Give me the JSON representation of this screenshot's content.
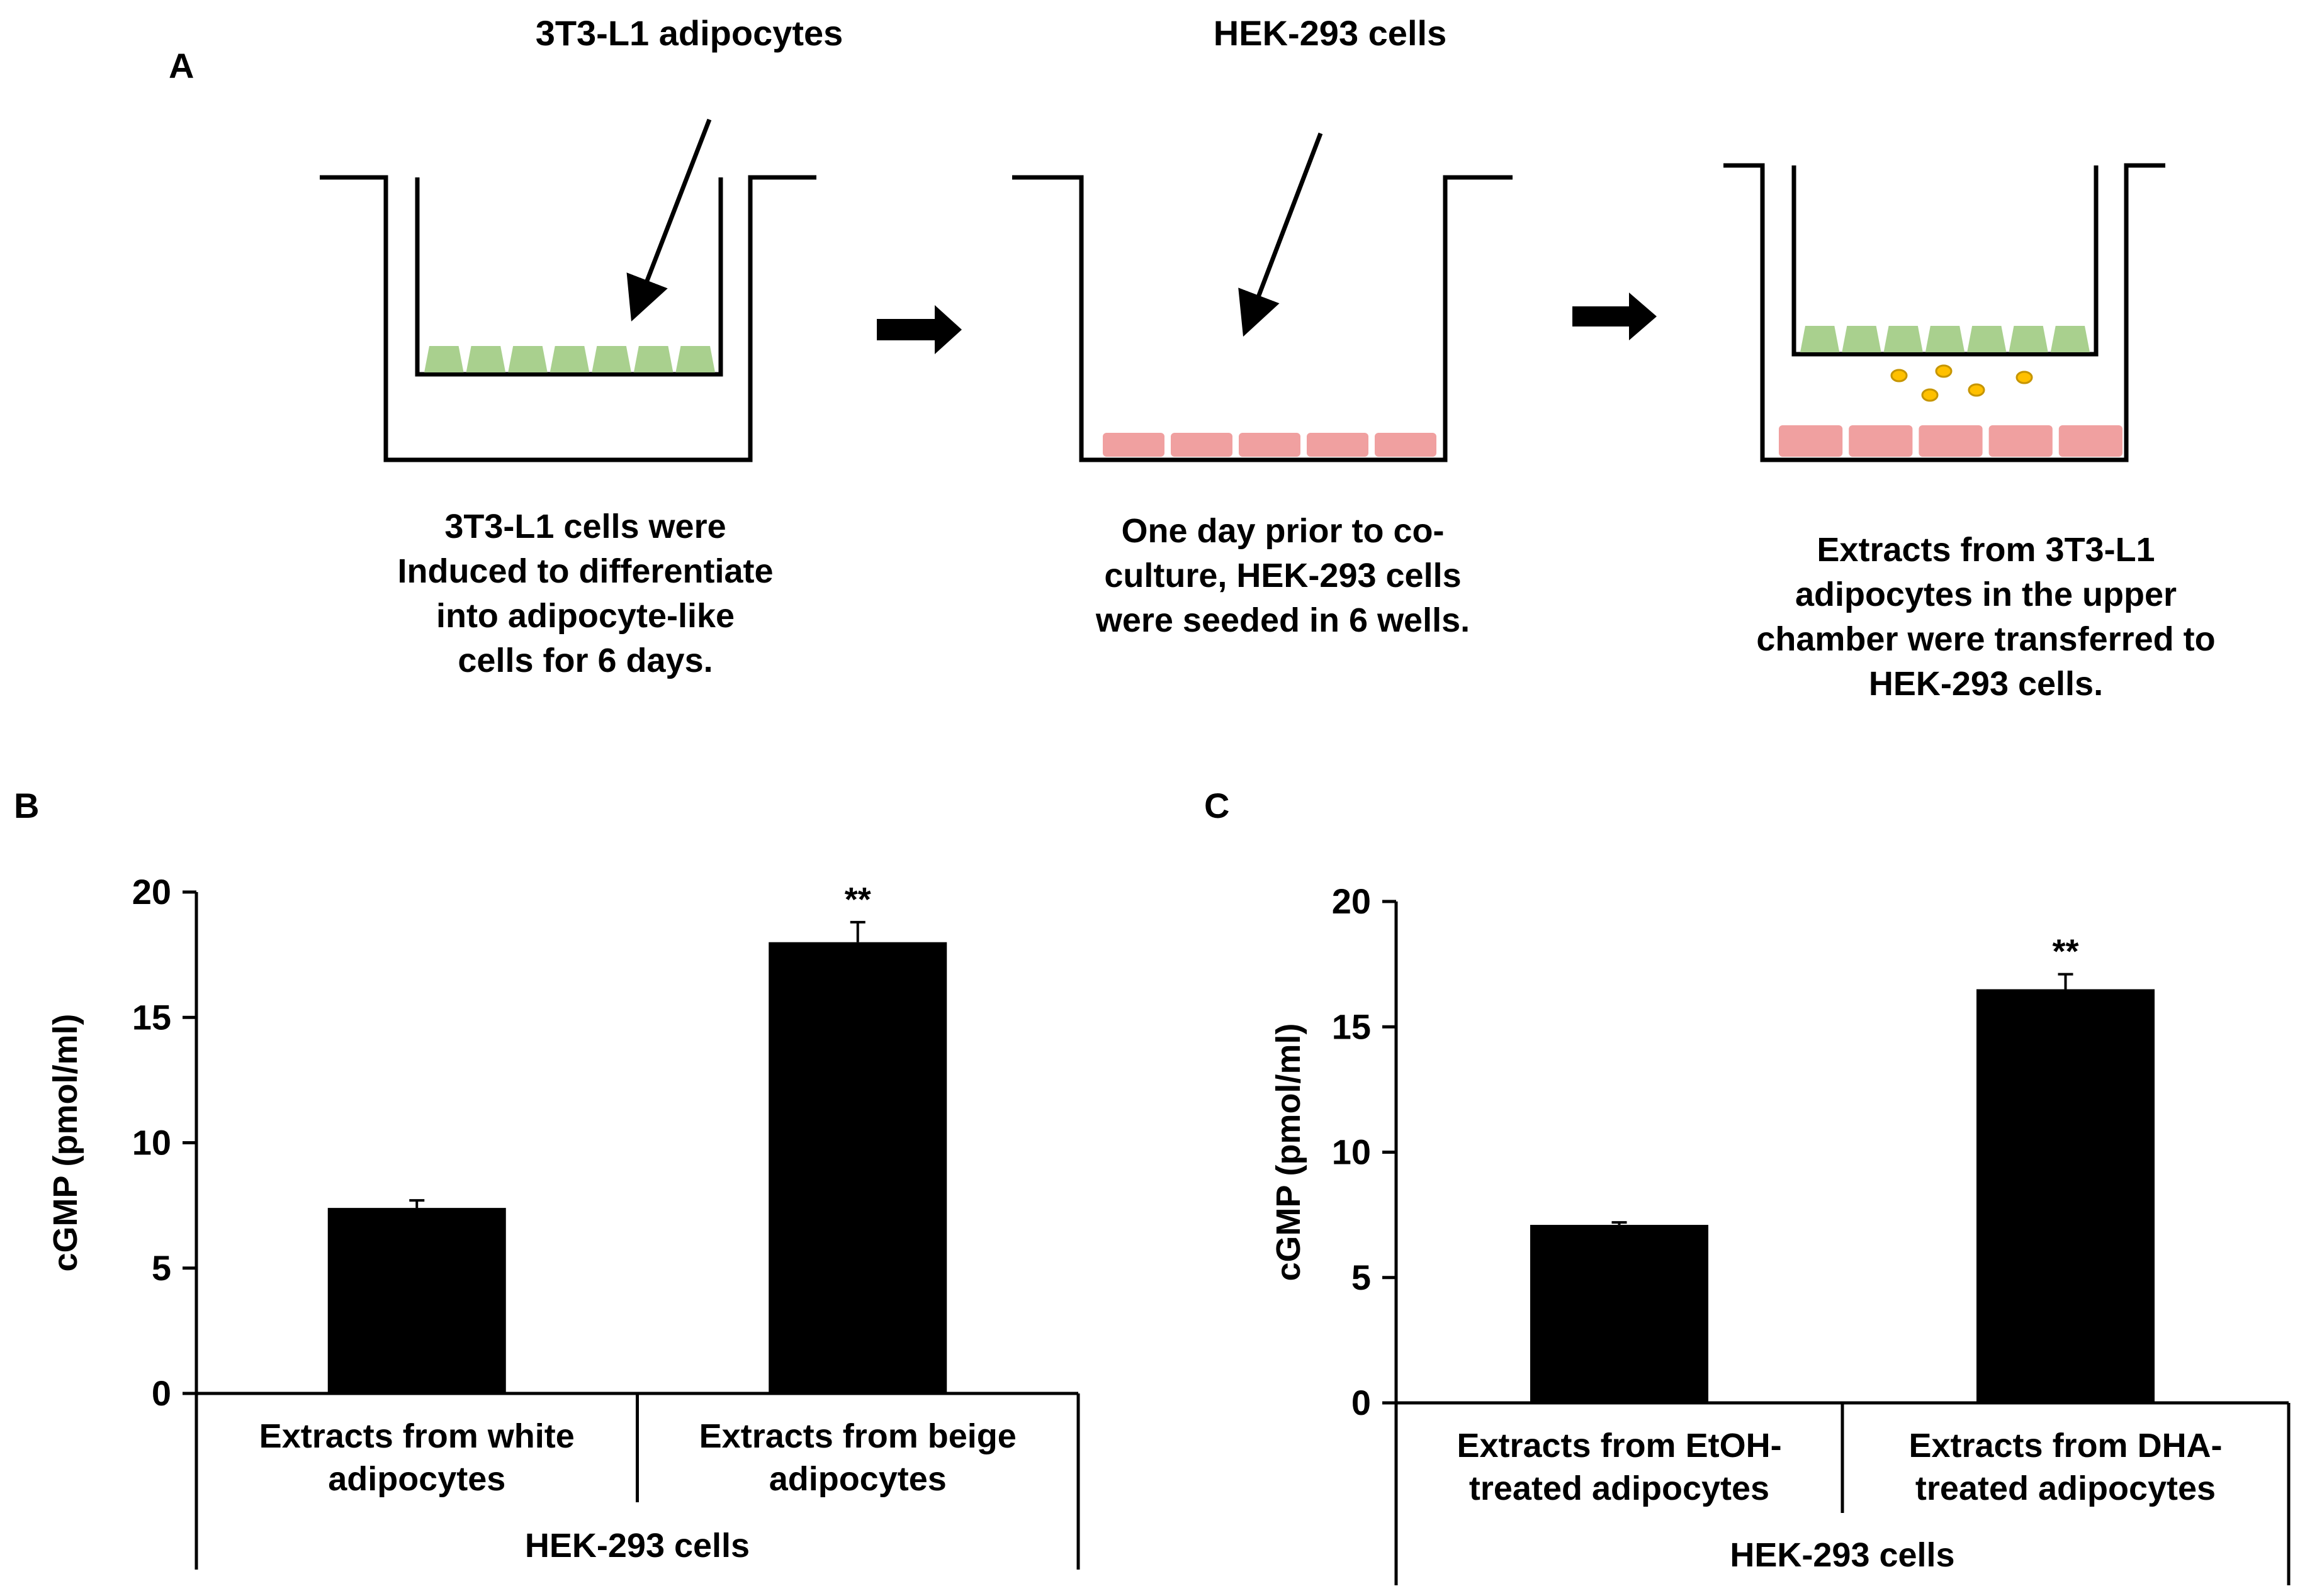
{
  "panels": {
    "a": "A",
    "b": "B",
    "c": "C"
  },
  "schematic": {
    "label_adipocytes": "3T3-L1 adipocytes",
    "label_hek": "HEK-293 cells",
    "captions": [
      [
        "3T3-L1 cells were",
        "Induced to differentiate",
        "into adipocyte-like",
        "cells for 6 days."
      ],
      [
        "One day prior to co-",
        "culture, HEK-293 cells",
        "were seeded in 6 wells."
      ],
      [
        "Extracts from 3T3-L1",
        "adipocytes in the upper",
        "chamber  were transferred to",
        "HEK-293 cells."
      ]
    ],
    "colors": {
      "adipocyte": "#a9d08e",
      "hek": "#f0a0a0",
      "droplet": "#ffc000"
    }
  },
  "chart_data": [
    {
      "type": "bar",
      "panel": "B",
      "categories": [
        [
          "Extracts from white",
          "adipocytes"
        ],
        [
          "Extracts from beige",
          "adipocytes"
        ]
      ],
      "values": [
        7.4,
        18.0
      ],
      "errors": [
        0.3,
        0.8
      ],
      "significance": [
        "",
        "**"
      ],
      "group_label": "HEK-293 cells",
      "ylabel": "cGMP (pmol/ml)",
      "ylim": [
        0,
        20
      ],
      "yticks": [
        0,
        5,
        10,
        15,
        20
      ],
      "bar_color": "#000000"
    },
    {
      "type": "bar",
      "panel": "C",
      "categories": [
        [
          "Extracts from EtOH-",
          "treated adipocytes"
        ],
        [
          "Extracts from DHA-",
          "treated adipocytes"
        ]
      ],
      "values": [
        7.1,
        16.5
      ],
      "errors": [
        0.1,
        0.6
      ],
      "significance": [
        "",
        "**"
      ],
      "group_label": "HEK-293 cells",
      "ylabel": "cGMP (pmol/ml)",
      "ylim": [
        0,
        20
      ],
      "yticks": [
        0,
        5,
        10,
        15,
        20
      ],
      "bar_color": "#000000"
    }
  ]
}
